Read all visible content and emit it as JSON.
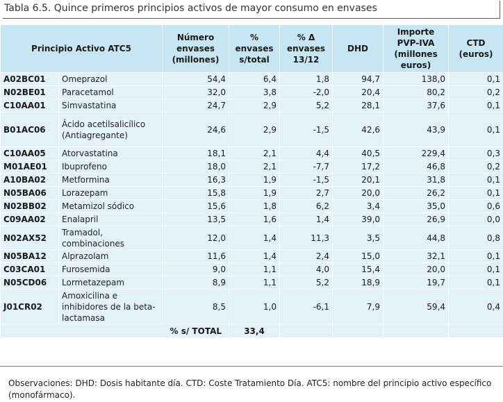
{
  "title": "Tabla 6.5. Quince primeros principios activos de mayor consumo en envases",
  "headers": {
    "principio": "Principio Activo ATC5",
    "numero": "Número envases (millones)",
    "pct": "% envases s/total",
    "delta": "% Δ envases 13/12",
    "dhd": "DHD",
    "importe": "Importe PVP-IVA (millones euros)",
    "ctd": "CTD (euros)"
  },
  "rows": [
    {
      "code": "A02BC01",
      "name": "Omeprazol",
      "numero": "54,4",
      "pct": "6,4",
      "delta": "1,8",
      "dhd": "94,7",
      "importe": "138,0",
      "ctd": "0,1"
    },
    {
      "code": "N02BE01",
      "name": "Paracetamol",
      "numero": "32,0",
      "pct": "3,8",
      "delta": "-2,0",
      "dhd": "20,4",
      "importe": "80,2",
      "ctd": "0,2"
    },
    {
      "code": "C10AA01",
      "name": "Simvastatina",
      "numero": "24,7",
      "pct": "2,9",
      "delta": "5,2",
      "dhd": "28,1",
      "importe": "37,6",
      "ctd": "0,1"
    },
    {
      "code": "B01AC06",
      "name": "Ácido acetilsalicílico (Antiagregante)",
      "numero": "24,6",
      "pct": "2,9",
      "delta": "-1,5",
      "dhd": "42,6",
      "importe": "43,9",
      "ctd": "0,1"
    },
    {
      "code": "C10AA05",
      "name": "Atorvastatina",
      "numero": "18,1",
      "pct": "2,1",
      "delta": "4,4",
      "dhd": "40,5",
      "importe": "229,4",
      "ctd": "0,3"
    },
    {
      "code": "M01AE01",
      "name": "Ibuprofeno",
      "numero": "18,0",
      "pct": "2,1",
      "delta": "-7,7",
      "dhd": "17,2",
      "importe": "46,8",
      "ctd": "0,2"
    },
    {
      "code": "A10BA02",
      "name": "Metformina",
      "numero": "16,3",
      "pct": "1,9",
      "delta": "-1,5",
      "dhd": "20,1",
      "importe": "31,8",
      "ctd": "0,1"
    },
    {
      "code": "N05BA06",
      "name": "Lorazepam",
      "numero": "15,8",
      "pct": "1,9",
      "delta": "2,7",
      "dhd": "20,0",
      "importe": "26,2",
      "ctd": "0,1"
    },
    {
      "code": "N02BB02",
      "name": "Metamizol sódico",
      "numero": "15,6",
      "pct": "1,8",
      "delta": "6,2",
      "dhd": "3,4",
      "importe": "35,0",
      "ctd": "0,6"
    },
    {
      "code": "C09AA02",
      "name": "Enalapril",
      "numero": "13,5",
      "pct": "1,6",
      "delta": "1,4",
      "dhd": "39,0",
      "importe": "26,9",
      "ctd": "0,0"
    },
    {
      "code": "N02AX52",
      "name": "Tramadol, combinaciones",
      "numero": "12,0",
      "pct": "1,4",
      "delta": "11,3",
      "dhd": "3,5",
      "importe": "44,8",
      "ctd": "0,8"
    },
    {
      "code": "N05BA12",
      "name": "Alprazolam",
      "numero": "11,6",
      "pct": "1,4",
      "delta": "2,4",
      "dhd": "15,0",
      "importe": "32,1",
      "ctd": "0,1"
    },
    {
      "code": "C03CA01",
      "name": "Furosemida",
      "numero": "9,0",
      "pct": "1,1",
      "delta": "4,0",
      "dhd": "15,4",
      "importe": "20,0",
      "ctd": "0,1"
    },
    {
      "code": "N05CD06",
      "name": "Lormetazepam",
      "numero": "8,9",
      "pct": "1,1",
      "delta": "5,2",
      "dhd": "18,9",
      "importe": "19,7",
      "ctd": "0,1"
    },
    {
      "code": "J01CR02",
      "name": "Amoxicilina e inhibidores de la beta-lactamasa",
      "numero": "8,5",
      "pct": "1,0",
      "delta": "-6,1",
      "dhd": "7,9",
      "importe": "59,4",
      "ctd": "0,4"
    }
  ],
  "total": {
    "label": "% s/ TOTAL",
    "pct": "33,4"
  },
  "note": "Observaciones: DHD: Dosis habitante día. CTD: Coste Tratamiento Día. ATC5: nombre del principio activo específico (monofármaco)."
}
